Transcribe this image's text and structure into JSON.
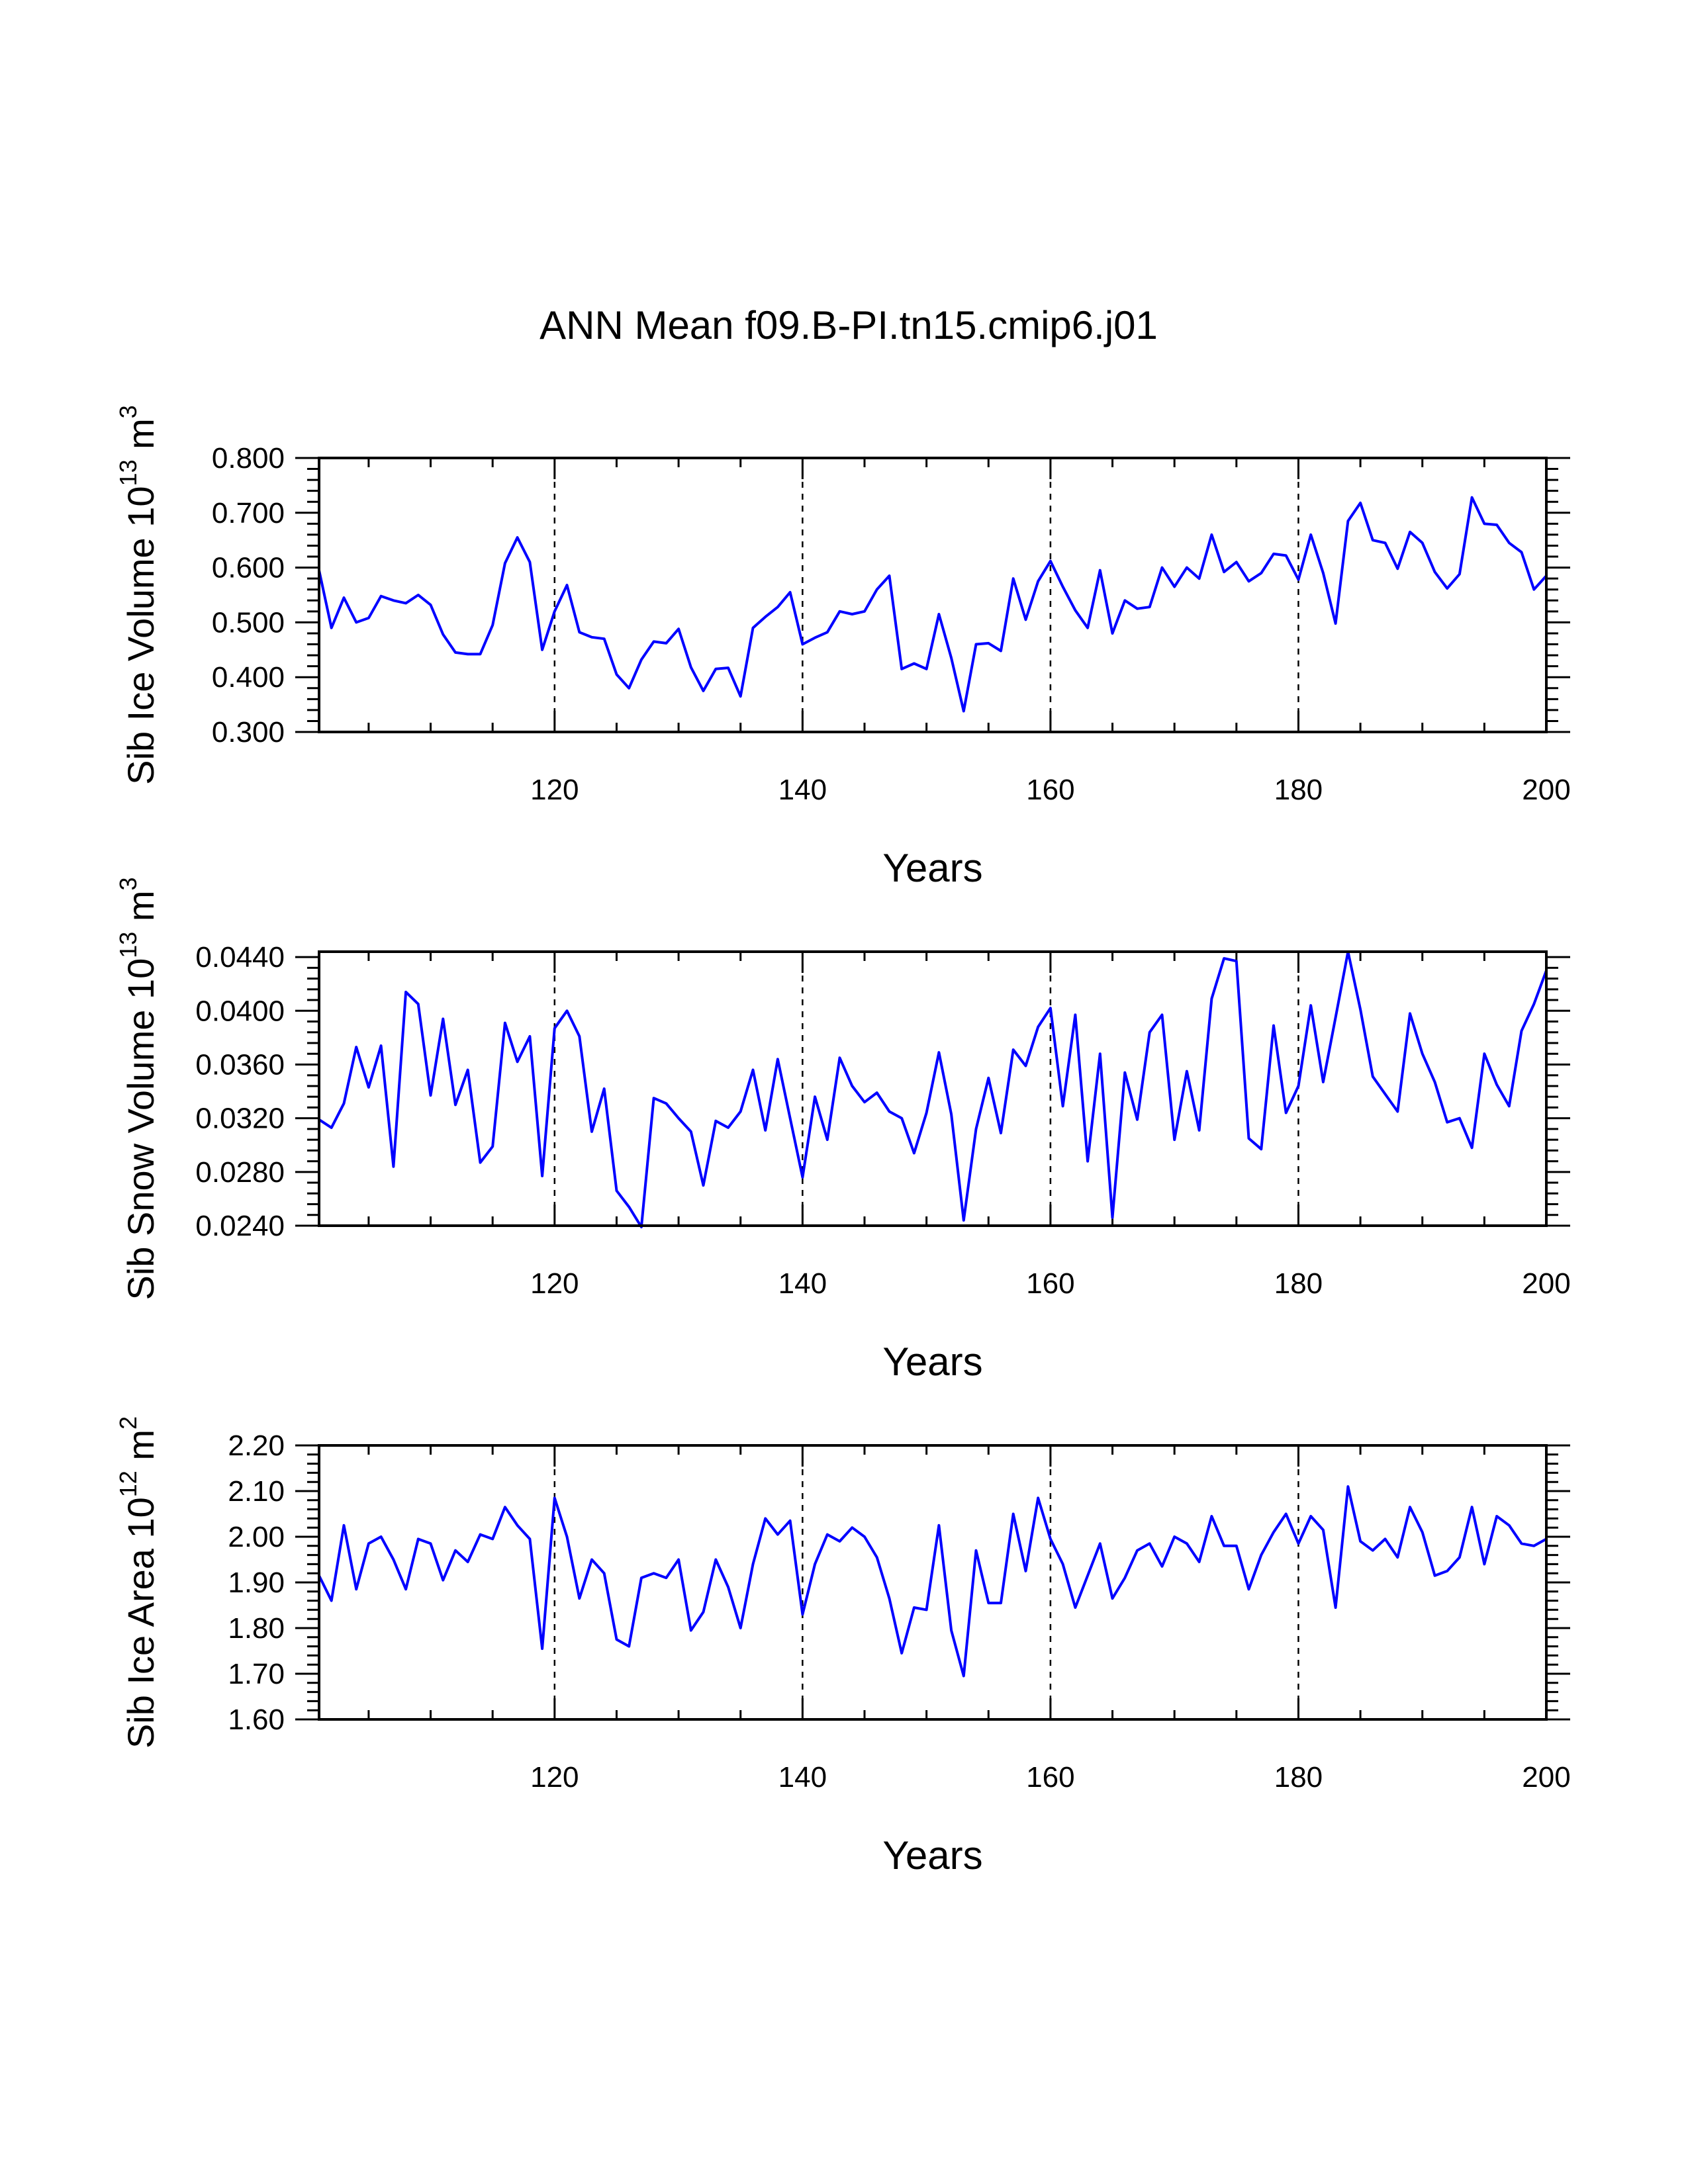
{
  "title": "ANN Mean f09.B-PI.tn15.cmip6.j01",
  "chart_data": [
    {
      "type": "line",
      "ylabel": {
        "text": "Sib Ice Volume 10",
        "sup": "13",
        "unit": " m",
        "unit_sup": "3"
      },
      "xlabel": "Years",
      "xlim": [
        101,
        200
      ],
      "ylim": [
        0.3,
        0.8
      ],
      "xticks": [
        120,
        140,
        160,
        180,
        200
      ],
      "xtick_labels": [
        "120",
        "140",
        "160",
        "180",
        "200"
      ],
      "yticks": [
        0.3,
        0.4,
        0.5,
        0.6,
        0.7,
        0.8
      ],
      "ytick_labels": [
        "0.300",
        "0.400",
        "0.500",
        "0.600",
        "0.700",
        "0.800"
      ],
      "vlines": [
        120,
        140,
        160,
        180
      ],
      "color": "#0000ff",
      "x_start": 101,
      "values": [
        0.595,
        0.49,
        0.545,
        0.5,
        0.508,
        0.548,
        0.54,
        0.535,
        0.55,
        0.532,
        0.478,
        0.445,
        0.442,
        0.442,
        0.495,
        0.608,
        0.655,
        0.61,
        0.45,
        0.52,
        0.568,
        0.482,
        0.473,
        0.47,
        0.405,
        0.38,
        0.432,
        0.465,
        0.462,
        0.488,
        0.418,
        0.375,
        0.415,
        0.417,
        0.365,
        0.49,
        0.51,
        0.528,
        0.555,
        0.46,
        0.472,
        0.482,
        0.52,
        0.515,
        0.52,
        0.56,
        0.585,
        0.415,
        0.425,
        0.415,
        0.515,
        0.435,
        0.338,
        0.46,
        0.462,
        0.448,
        0.58,
        0.505,
        0.575,
        0.612,
        0.565,
        0.522,
        0.49,
        0.595,
        0.48,
        0.54,
        0.525,
        0.528,
        0.6,
        0.565,
        0.6,
        0.58,
        0.66,
        0.592,
        0.61,
        0.575,
        0.59,
        0.625,
        0.622,
        0.578,
        0.66,
        0.59,
        0.498,
        0.685,
        0.718,
        0.65,
        0.645,
        0.598,
        0.665,
        0.645,
        0.592,
        0.562,
        0.588,
        0.728,
        0.68,
        0.678,
        0.645,
        0.628,
        0.56,
        0.585
      ]
    },
    {
      "type": "line",
      "ylabel": {
        "text": "Sib Snow Volume 10",
        "sup": "13",
        "unit": " m",
        "unit_sup": "3"
      },
      "xlabel": "Years",
      "xlim": [
        101,
        200
      ],
      "ylim": [
        0.024,
        0.0444
      ],
      "xticks": [
        120,
        140,
        160,
        180,
        200
      ],
      "xtick_labels": [
        "120",
        "140",
        "160",
        "180",
        "200"
      ],
      "yticks": [
        0.024,
        0.028,
        0.032,
        0.036,
        0.04,
        0.044
      ],
      "ytick_labels": [
        "0.0240",
        "0.0280",
        "0.0320",
        "0.0360",
        "0.0400",
        "0.0440"
      ],
      "vlines": [
        120,
        140,
        160,
        180
      ],
      "color": "#0000ff",
      "x_start": 101,
      "values": [
        0.0319,
        0.0313,
        0.0331,
        0.0373,
        0.0343,
        0.0374,
        0.0284,
        0.0414,
        0.0405,
        0.0337,
        0.0394,
        0.033,
        0.0356,
        0.0287,
        0.0299,
        0.0391,
        0.0362,
        0.0381,
        0.0277,
        0.0387,
        0.04,
        0.0381,
        0.031,
        0.0342,
        0.0266,
        0.0254,
        0.0239,
        0.0335,
        0.0331,
        0.032,
        0.031,
        0.027,
        0.0318,
        0.0313,
        0.0325,
        0.0356,
        0.0311,
        0.0364,
        0.032,
        0.0276,
        0.0336,
        0.0304,
        0.0365,
        0.0344,
        0.0332,
        0.0339,
        0.0325,
        0.032,
        0.0294,
        0.0324,
        0.0369,
        0.0323,
        0.0244,
        0.0312,
        0.035,
        0.0309,
        0.0371,
        0.0359,
        0.0388,
        0.0402,
        0.0329,
        0.0397,
        0.0288,
        0.0368,
        0.0246,
        0.0354,
        0.0319,
        0.0384,
        0.0397,
        0.0304,
        0.0355,
        0.0311,
        0.0409,
        0.0439,
        0.0437,
        0.0305,
        0.0297,
        0.0389,
        0.0324,
        0.0344,
        0.0404,
        0.0347,
        0.0395,
        0.0444,
        0.0401,
        0.0351,
        0.0338,
        0.0325,
        0.0398,
        0.0368,
        0.0347,
        0.0317,
        0.032,
        0.0298,
        0.0368,
        0.0345,
        0.0329,
        0.0385,
        0.0405,
        0.043
      ]
    },
    {
      "type": "line",
      "ylabel": {
        "text": "Sib Ice Area 10",
        "sup": "12",
        "unit": " m",
        "unit_sup": "2"
      },
      "xlabel": "Years",
      "xlim": [
        101,
        200
      ],
      "ylim": [
        1.6,
        2.2
      ],
      "xticks": [
        120,
        140,
        160,
        180,
        200
      ],
      "xtick_labels": [
        "120",
        "140",
        "160",
        "180",
        "200"
      ],
      "yticks": [
        1.6,
        1.7,
        1.8,
        1.9,
        2.0,
        2.1,
        2.2
      ],
      "ytick_labels": [
        "1.60",
        "1.70",
        "1.80",
        "1.90",
        "2.00",
        "2.10",
        "2.20"
      ],
      "vlines": [
        120,
        140,
        160,
        180
      ],
      "color": "#0000ff",
      "x_start": 101,
      "values": [
        1.915,
        1.86,
        2.025,
        1.885,
        1.985,
        2.0,
        1.95,
        1.885,
        1.995,
        1.985,
        1.905,
        1.97,
        1.945,
        2.005,
        1.995,
        2.065,
        2.025,
        1.995,
        1.755,
        2.085,
        2.0,
        1.865,
        1.95,
        1.92,
        1.775,
        1.76,
        1.91,
        1.92,
        1.91,
        1.95,
        1.795,
        1.835,
        1.95,
        1.89,
        1.8,
        1.94,
        2.04,
        2.005,
        2.035,
        1.83,
        1.94,
        2.005,
        1.99,
        2.02,
        2.0,
        1.955,
        1.865,
        1.745,
        1.845,
        1.84,
        2.025,
        1.795,
        1.695,
        1.97,
        1.855,
        1.855,
        2.05,
        1.925,
        2.085,
        1.995,
        1.94,
        1.845,
        1.915,
        1.985,
        1.865,
        1.91,
        1.97,
        1.985,
        1.935,
        2.0,
        1.985,
        1.945,
        2.045,
        1.98,
        1.98,
        1.885,
        1.96,
        2.01,
        2.05,
        1.985,
        2.045,
        2.015,
        1.845,
        2.11,
        1.99,
        1.97,
        1.995,
        1.955,
        2.065,
        2.01,
        1.915,
        1.925,
        1.955,
        2.065,
        1.94,
        2.045,
        2.025,
        1.985,
        1.98,
        1.995
      ]
    }
  ]
}
